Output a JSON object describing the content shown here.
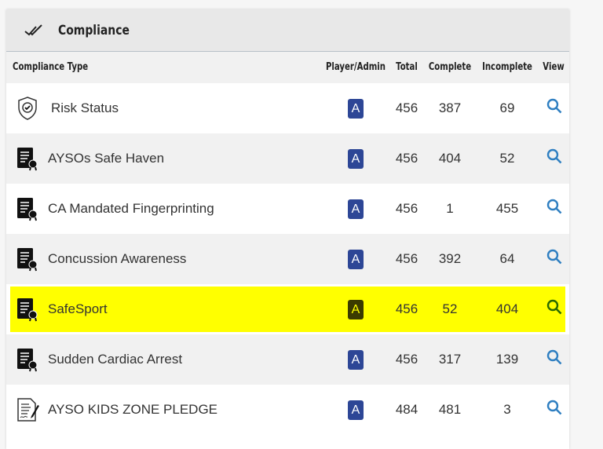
{
  "panel": {
    "title": "Compliance",
    "icon": "double-check-icon"
  },
  "columns": {
    "type": "Compliance Type",
    "player_admin": "Player/Admin",
    "total": "Total",
    "complete": "Complete",
    "incomplete": "Incomplete",
    "view": "View"
  },
  "colors": {
    "badge": "#2d4696",
    "highlight": "#ffff00",
    "view_icon": "#2f7fc1"
  },
  "rows": [
    {
      "name": "Risk Status",
      "icon": "shield-check-icon",
      "badge": "A",
      "total": "456",
      "complete": "387",
      "incomplete": "69"
    },
    {
      "name": "AYSOs Safe Haven",
      "icon": "certificate-icon",
      "badge": "A",
      "total": "456",
      "complete": "404",
      "incomplete": "52"
    },
    {
      "name": "CA Mandated Fingerprinting",
      "icon": "certificate-icon",
      "badge": "A",
      "total": "456",
      "complete": "1",
      "incomplete": "455"
    },
    {
      "name": "Concussion Awareness",
      "icon": "certificate-icon",
      "badge": "A",
      "total": "456",
      "complete": "392",
      "incomplete": "64"
    },
    {
      "name": "SafeSport",
      "icon": "certificate-icon",
      "badge": "A",
      "total": "456",
      "complete": "52",
      "incomplete": "404",
      "highlighted": true
    },
    {
      "name": "Sudden Cardiac Arrest",
      "icon": "certificate-icon",
      "badge": "A",
      "total": "456",
      "complete": "317",
      "incomplete": "139"
    },
    {
      "name": "AYSO KIDS ZONE PLEDGE",
      "icon": "signed-document-icon",
      "badge": "A",
      "total": "484",
      "complete": "481",
      "incomplete": "3"
    }
  ]
}
